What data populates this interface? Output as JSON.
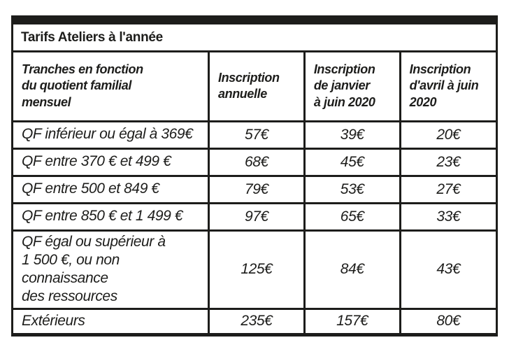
{
  "page": {
    "background_color": "#ffffff",
    "border_color": "#1d1d1b",
    "text_color": "#1d1d1b"
  },
  "table": {
    "title": "Tarifs Ateliers à l'année",
    "headers": [
      "Tranches en fonction\ndu quotient familial\nmensuel",
      "Inscription\nannuelle",
      "Inscription\nde janvier\nà juin 2020",
      "Inscription\nd'avril à juin\n2020"
    ],
    "rows": [
      {
        "label": "QF inférieur ou égal à 369€",
        "annual": "57€",
        "jan_jun": "39€",
        "apr_jun": "20€"
      },
      {
        "label": "QF entre 370 € et 499 €",
        "annual": "68€",
        "jan_jun": "45€",
        "apr_jun": "23€"
      },
      {
        "label": "QF entre 500 et 849 €",
        "annual": "79€",
        "jan_jun": "53€",
        "apr_jun": "27€"
      },
      {
        "label": "QF entre 850 € et 1 499 €",
        "annual": "97€",
        "jan_jun": "65€",
        "apr_jun": "33€"
      },
      {
        "label": "QF égal ou supérieur à\n1 500 €, ou non connaissance\ndes ressources",
        "annual": "125€",
        "jan_jun": "84€",
        "apr_jun": "43€"
      },
      {
        "label": "Extérieurs",
        "annual": "235€",
        "jan_jun": "157€",
        "apr_jun": "80€"
      }
    ]
  }
}
